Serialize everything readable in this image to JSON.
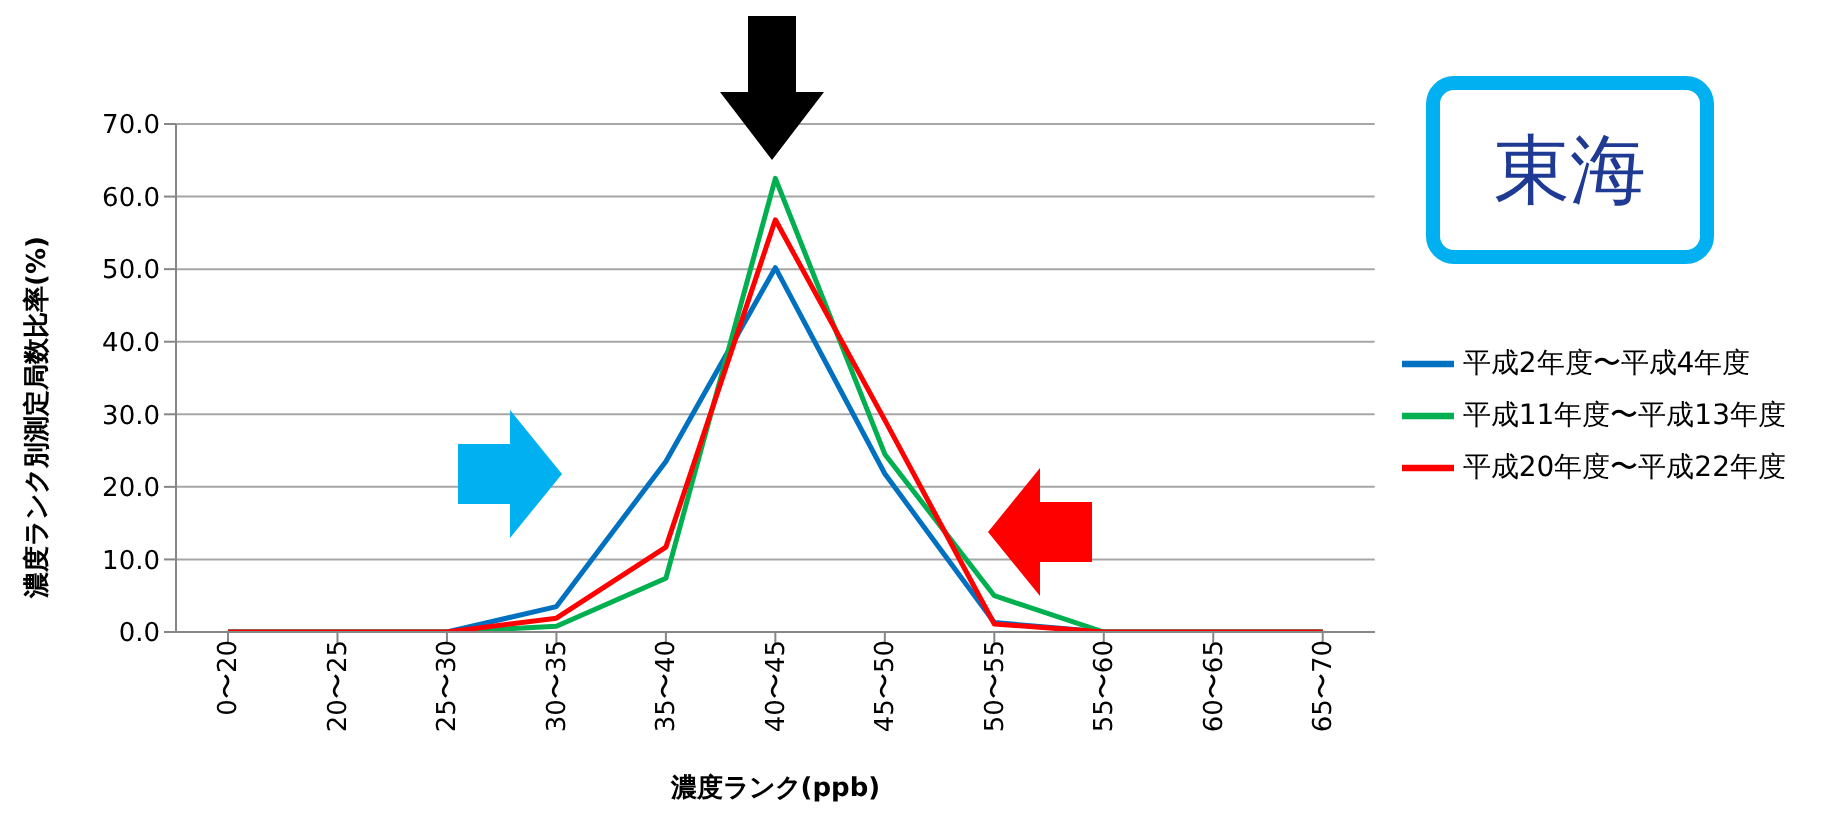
{
  "chart_data": {
    "type": "line",
    "title": "東海",
    "xlabel": "濃度ランク(ppb)",
    "ylabel": "濃度ランク別測定局数比率(%)",
    "categories": [
      "0〜20",
      "20〜25",
      "25〜30",
      "30〜35",
      "35〜40",
      "40〜45",
      "45〜50",
      "50〜55",
      "55〜60",
      "60〜65",
      "65〜70"
    ],
    "series": [
      {
        "name": "平成2年度〜平成4年度",
        "color": "#0070c0",
        "values": [
          0,
          0,
          0,
          3.5,
          23.5,
          50.2,
          21.8,
          1.3,
          0,
          0,
          0
        ]
      },
      {
        "name": "平成11年度〜平成13年度",
        "color": "#00b050",
        "values": [
          0,
          0,
          0,
          0.8,
          7.4,
          62.5,
          24.5,
          5.0,
          0,
          0,
          0
        ]
      },
      {
        "name": "平成20年度〜平成22年度",
        "color": "#ff0000",
        "values": [
          0,
          0,
          0,
          1.9,
          11.7,
          56.8,
          29.2,
          1.1,
          0,
          0,
          0
        ]
      }
    ],
    "ylim": [
      0,
      70
    ],
    "yticks": [
      {
        "value": 0,
        "label": "0.0"
      },
      {
        "value": 10,
        "label": "10.0"
      },
      {
        "value": 20,
        "label": "20.0"
      },
      {
        "value": 30,
        "label": "30.0"
      },
      {
        "value": 40,
        "label": "40.0"
      },
      {
        "value": 50,
        "label": "50.0"
      },
      {
        "value": 60,
        "label": "60.0"
      },
      {
        "value": 70,
        "label": "70.0"
      }
    ],
    "grid": "y",
    "legend": "right",
    "marker": "none",
    "line_style": "solid"
  }
}
